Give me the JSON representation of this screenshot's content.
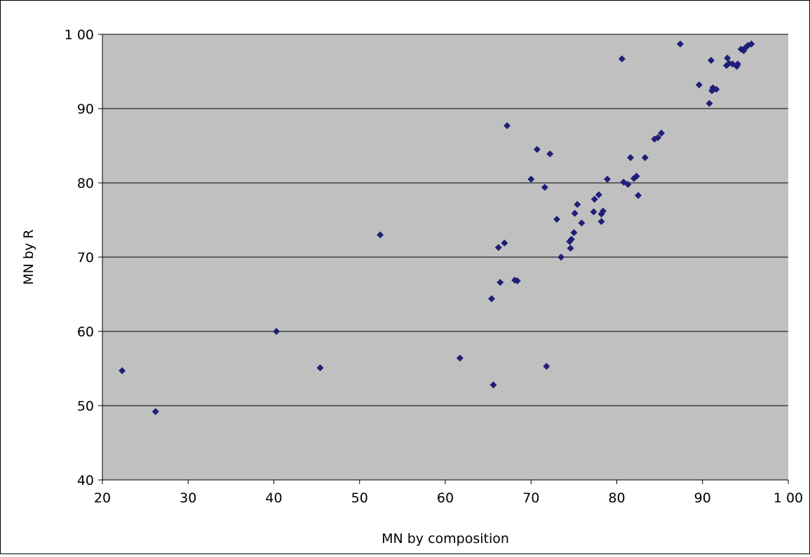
{
  "chart_data": {
    "type": "scatter",
    "title": "",
    "xlabel": "MN by composition",
    "ylabel": "MN by R",
    "xlim": [
      20,
      100
    ],
    "ylim": [
      40,
      100
    ],
    "x_ticks": [
      20,
      30,
      40,
      50,
      60,
      70,
      80,
      90,
      100
    ],
    "y_ticks": [
      40,
      50,
      60,
      70,
      80,
      90,
      100
    ],
    "x_tick_labels": [
      "20",
      "30",
      "40",
      "50",
      "60",
      "70",
      "80",
      "90",
      "1 00"
    ],
    "y_tick_labels": [
      "40",
      "50",
      "60",
      "70",
      "80",
      "90",
      "1 00"
    ],
    "grid": "horizontal",
    "legend": "none",
    "colors": {
      "plot_bg": "#c0c0c0",
      "marker": "#1f1f7a",
      "grid": "#000000"
    },
    "series": [
      {
        "marker": "diamond",
        "points": [
          [
            22.3,
            54.7
          ],
          [
            26.2,
            49.2
          ],
          [
            40.3,
            60.0
          ],
          [
            45.4,
            55.1
          ],
          [
            52.4,
            73.0
          ],
          [
            61.7,
            56.4
          ],
          [
            65.4,
            64.4
          ],
          [
            65.6,
            52.8
          ],
          [
            66.2,
            71.3
          ],
          [
            66.4,
            66.6
          ],
          [
            66.9,
            71.9
          ],
          [
            67.2,
            87.7
          ],
          [
            68.1,
            66.9
          ],
          [
            68.4,
            66.8
          ],
          [
            70.0,
            80.5
          ],
          [
            70.7,
            84.5
          ],
          [
            71.6,
            79.4
          ],
          [
            71.8,
            55.3
          ],
          [
            72.2,
            83.9
          ],
          [
            73.0,
            75.1
          ],
          [
            73.5,
            70.0
          ],
          [
            74.5,
            72.1
          ],
          [
            74.6,
            71.2
          ],
          [
            74.7,
            72.4
          ],
          [
            75.0,
            73.3
          ],
          [
            75.1,
            75.9
          ],
          [
            75.4,
            77.1
          ],
          [
            75.9,
            74.6
          ],
          [
            77.3,
            76.1
          ],
          [
            77.4,
            77.8
          ],
          [
            77.9,
            78.4
          ],
          [
            78.2,
            75.8
          ],
          [
            78.2,
            74.8
          ],
          [
            78.4,
            76.2
          ],
          [
            78.9,
            80.5
          ],
          [
            80.6,
            96.7
          ],
          [
            80.8,
            80.1
          ],
          [
            81.3,
            79.8
          ],
          [
            81.6,
            83.4
          ],
          [
            82.0,
            80.6
          ],
          [
            82.3,
            80.9
          ],
          [
            82.5,
            78.3
          ],
          [
            83.3,
            83.4
          ],
          [
            84.4,
            85.9
          ],
          [
            84.8,
            86.1
          ],
          [
            85.2,
            86.7
          ],
          [
            87.4,
            98.7
          ],
          [
            89.6,
            93.2
          ],
          [
            90.8,
            90.7
          ],
          [
            91.0,
            96.5
          ],
          [
            91.1,
            92.4
          ],
          [
            91.2,
            92.8
          ],
          [
            91.6,
            92.6
          ],
          [
            92.8,
            95.8
          ],
          [
            92.9,
            96.8
          ],
          [
            93.1,
            96.1
          ],
          [
            93.5,
            96.0
          ],
          [
            94.0,
            95.7
          ],
          [
            94.1,
            96.0
          ],
          [
            94.5,
            98.0
          ],
          [
            94.8,
            97.8
          ],
          [
            95.0,
            98.2
          ],
          [
            95.3,
            98.5
          ],
          [
            95.7,
            98.7
          ]
        ]
      }
    ]
  }
}
